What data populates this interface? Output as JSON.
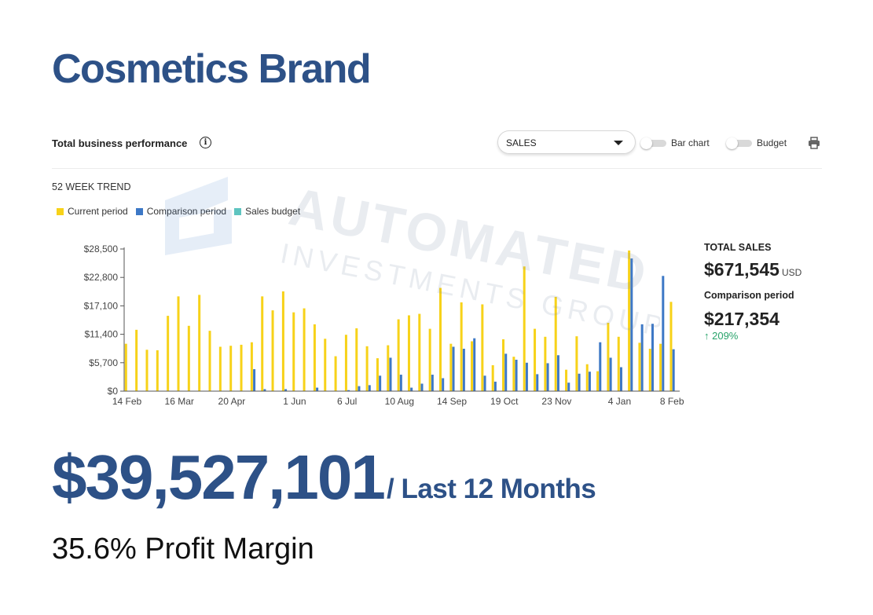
{
  "brand": {
    "title": "Cosmetics Brand"
  },
  "panel": {
    "title": "Total business performance",
    "metric_select": "SALES",
    "toggle_bar_chart": "Bar chart",
    "toggle_budget": "Budget",
    "trend_title": "52 WEEK TREND"
  },
  "legend": {
    "current": "Current period",
    "comparison": "Comparison period",
    "budget": "Sales budget"
  },
  "colors": {
    "current": "#f7d219",
    "comparison": "#3d78c6",
    "budget": "#5ec4c0",
    "brand_blue": "#2d5187",
    "positive_green": "#27a36a"
  },
  "watermark": {
    "line1": "AUTOMATED",
    "line2": "INVESTMENTS GROUP"
  },
  "summary": {
    "total_label": "TOTAL SALES",
    "total_value": "$671,545",
    "total_unit": "USD",
    "comparison_label": "Comparison period",
    "comparison_value": "$217,354",
    "change": "↑ 209%"
  },
  "footer": {
    "big_number": "$39,527,101",
    "big_suffix": "/ Last 12 Months",
    "margin": "35.6% Profit Margin"
  },
  "chart_data": {
    "type": "bar",
    "title": "",
    "xlabel": "",
    "ylabel": "",
    "ylim": [
      0,
      28500
    ],
    "yticks": [
      0,
      5700,
      11400,
      17100,
      22800,
      28500
    ],
    "ytick_labels": [
      "$0",
      "$5,700",
      "$11,400",
      "$17,100",
      "$22,800",
      "$28,500"
    ],
    "xtick_labels": [
      {
        "index": 0,
        "label": "14 Feb"
      },
      {
        "index": 5,
        "label": "16 Mar"
      },
      {
        "index": 10,
        "label": "20 Apr"
      },
      {
        "index": 16,
        "label": "1 Jun"
      },
      {
        "index": 21,
        "label": "6 Jul"
      },
      {
        "index": 26,
        "label": "10 Aug"
      },
      {
        "index": 31,
        "label": "14 Sep"
      },
      {
        "index": 36,
        "label": "19 Oct"
      },
      {
        "index": 41,
        "label": "23 Nov"
      },
      {
        "index": 47,
        "label": "4 Jan"
      },
      {
        "index": 52,
        "label": "8 Feb"
      }
    ],
    "series": [
      {
        "name": "Current period",
        "values": [
          9500,
          12300,
          8300,
          8200,
          15100,
          19000,
          13100,
          19300,
          12100,
          8900,
          9100,
          9300,
          9800,
          19000,
          16200,
          20000,
          15800,
          16600,
          13400,
          10500,
          7000,
          11300,
          12600,
          9000,
          6600,
          9200,
          14400,
          15200,
          15500,
          12500,
          20700,
          9500,
          17800,
          10000,
          17400,
          5200,
          10400,
          6900,
          25000,
          12500,
          10900,
          18900,
          4300,
          11000,
          5400,
          4000,
          13700,
          10900,
          28200,
          9700,
          8500,
          9500,
          17900
        ]
      },
      {
        "name": "Comparison period",
        "values": [
          0,
          0,
          0,
          0,
          0,
          0,
          0,
          0,
          0,
          0,
          0,
          0,
          4400,
          400,
          0,
          400,
          0,
          0,
          700,
          0,
          0,
          200,
          1000,
          1200,
          3100,
          6700,
          3300,
          700,
          1500,
          3300,
          2600,
          8900,
          8500,
          10600,
          3100,
          1900,
          7500,
          6300,
          5700,
          3400,
          5600,
          7200,
          1700,
          3500,
          3900,
          9800,
          6700,
          4800,
          26600,
          13400,
          13500,
          23100,
          8400
        ]
      }
    ],
    "grid": false,
    "legend_position": "top-left"
  }
}
